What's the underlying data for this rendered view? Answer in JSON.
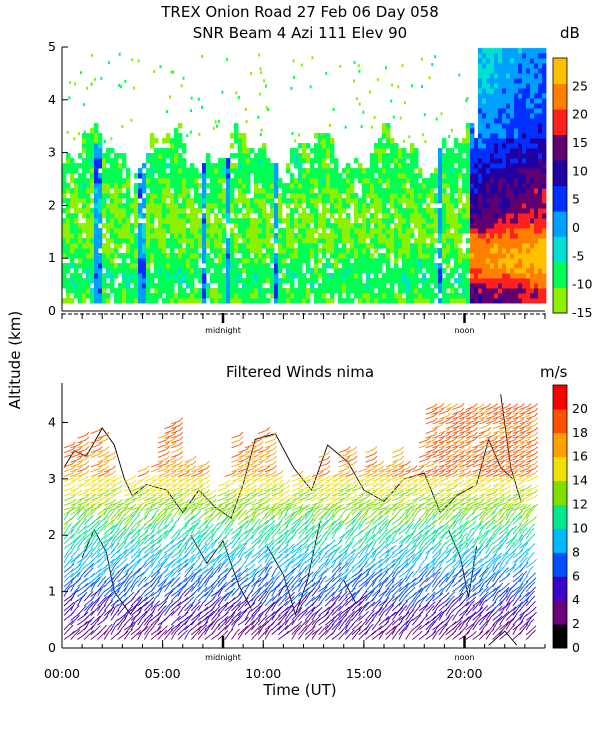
{
  "header": {
    "title_line1": "TREX Onion Road  27 Feb 06 Day 058",
    "title_line2": "SNR Beam 4 Azi 111 Elev 90"
  },
  "shared": {
    "ylabel": "Altitude (km)",
    "xlabel": "Time (UT)",
    "markers": {
      "midnight": "midnight",
      "noon": "noon"
    }
  },
  "chart_data": [
    {
      "type": "heatmap",
      "title": "SNR Beam 4 Azi 111 Elev 90",
      "ylim": [
        0,
        5
      ],
      "yticks": [
        "0",
        "1",
        "2",
        "3",
        "4",
        "5"
      ],
      "colorbar": {
        "unit": "dB",
        "range": [
          -15,
          30
        ],
        "ticks": [
          "-15",
          "-10",
          "-5",
          "0",
          "5",
          "10",
          "15",
          "20",
          "25"
        ],
        "colors": [
          "#8cf000",
          "#00ff55",
          "#00e0d0",
          "#00a0ff",
          "#0030ff",
          "#2000a0",
          "#600070",
          "#ff2020",
          "#ff8000",
          "#ffc000"
        ]
      }
    },
    {
      "type": "wind-barbs",
      "title": "Filtered Winds nima",
      "ylim": [
        0,
        4.7
      ],
      "yticks": [
        "0",
        "1",
        "2",
        "3",
        "4"
      ],
      "xlim": [
        0,
        24
      ],
      "xticks": [
        "00:00",
        "05:00",
        "10:00",
        "15:00",
        "20:00"
      ],
      "colorbar": {
        "unit": "m/s",
        "range": [
          0,
          22
        ],
        "ticks": [
          "0",
          "2",
          "4",
          "6",
          "8",
          "10",
          "12",
          "14",
          "16",
          "18",
          "20"
        ],
        "colors": [
          "#000000",
          "#6a007a",
          "#3c00c8",
          "#0050ff",
          "#00b8ff",
          "#00e88a",
          "#7fe000",
          "#f0e000",
          "#ffa000",
          "#ff5000",
          "#ff0000"
        ]
      }
    }
  ]
}
